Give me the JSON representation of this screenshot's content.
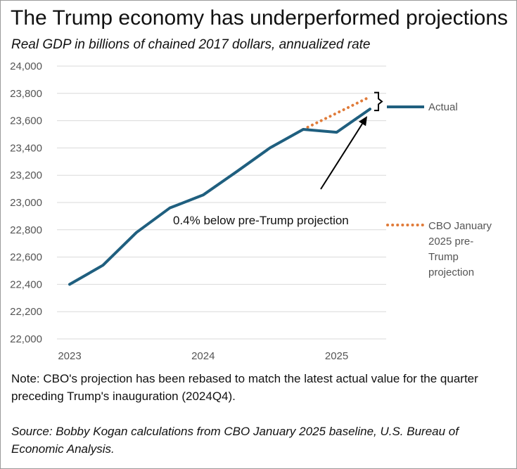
{
  "chart_data": {
    "type": "line",
    "title": "The Trump economy has underperformed projections",
    "subtitle": "Real GDP in billions of chained 2017 dollars, annualized rate",
    "ylim": [
      22000,
      24000
    ],
    "yticks": [
      22000,
      22200,
      22400,
      22600,
      22800,
      23000,
      23200,
      23400,
      23600,
      23800,
      24000
    ],
    "ytick_labels": [
      "22,000",
      "22,200",
      "22,400",
      "22,600",
      "22,800",
      "23,000",
      "23,200",
      "23,400",
      "23,600",
      "23,800",
      "24,000"
    ],
    "xlim": [
      2023.0,
      2025.25
    ],
    "xticks": [
      2023,
      2024,
      2025
    ],
    "xtick_labels": [
      "2023",
      "2024",
      "2025"
    ],
    "series": [
      {
        "name": "Actual",
        "color": "#1f5f7f",
        "style": "solid",
        "x": [
          2023.0,
          2023.25,
          2023.5,
          2023.75,
          2024.0,
          2024.25,
          2024.5,
          2024.75,
          2025.0,
          2025.25
        ],
        "values": [
          22400,
          22540,
          22780,
          22960,
          23055,
          23225,
          23400,
          23536,
          23515,
          23685
        ]
      },
      {
        "name": "CBO January 2025 pre-Trump projection",
        "legend_lines": [
          "CBO January",
          "2025 pre-",
          "Trump",
          "projection"
        ],
        "color": "#e07b39",
        "style": "dotted",
        "x": [
          2024.75,
          2025.0,
          2025.25
        ],
        "values": [
          23536,
          23655,
          23775
        ]
      }
    ],
    "annotation": "0.4% below pre-Trump projection"
  },
  "note": "Note: CBO's projection has been rebased to match the latest actual value for the quarter preceding Trump's inauguration (2024Q4).",
  "source": "Source: Bobby Kogan calculations from CBO January 2025 baseline, U.S. Bureau of Economic Analysis."
}
